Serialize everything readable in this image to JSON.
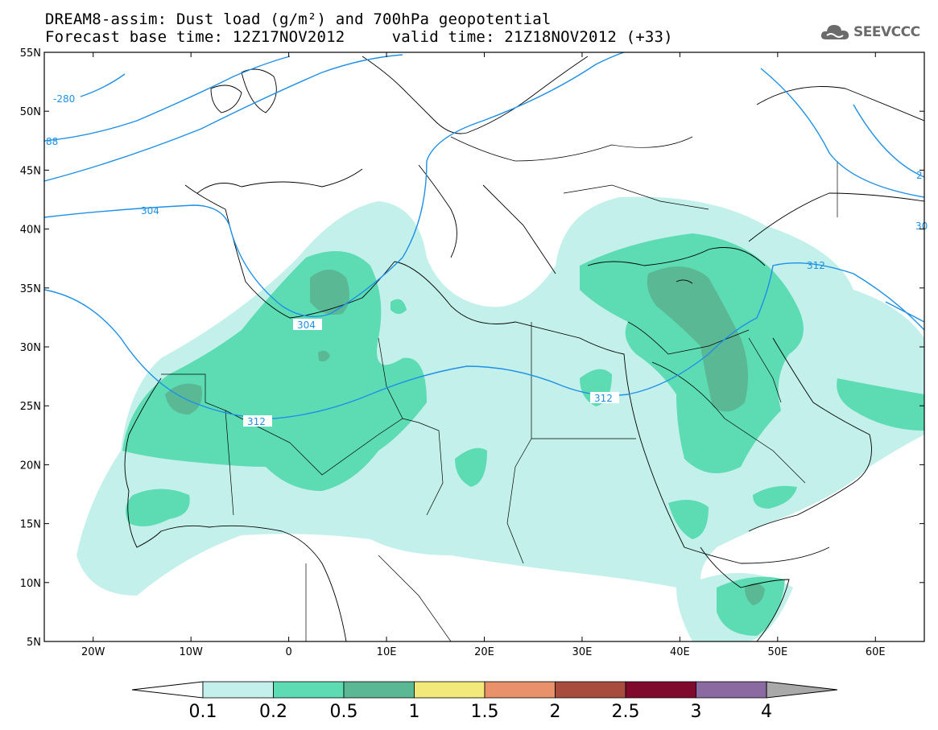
{
  "header": {
    "title_line1": "DREAM8-assim: Dust load (g/m²) and 700hPa geopotential",
    "title_line2": "Forecast base time: 12Z17NOV2012     valid time: 21Z18NOV2012 (+33)"
  },
  "logo": {
    "text": "SEEVCCC",
    "icon": "cloud-icon",
    "color": "#6b6b6b"
  },
  "map": {
    "lon_range": [
      -25,
      65
    ],
    "lat_range": [
      5,
      55
    ],
    "lat_labels": [
      "55N",
      "50N",
      "45N",
      "40N",
      "35N",
      "30N",
      "25N",
      "20N",
      "15N",
      "10N",
      "5N"
    ],
    "lon_labels": [
      "20W",
      "10W",
      "0",
      "10E",
      "20E",
      "30E",
      "40E",
      "50E",
      "60E"
    ],
    "contour_color": "#1e90e6",
    "contour_labels": [
      "-280",
      "88",
      "304",
      "304",
      "312",
      "312",
      "312",
      "30",
      "2"
    ]
  },
  "colorbar": {
    "labels": [
      "0.1",
      "0.2",
      "0.5",
      "1",
      "1.5",
      "2",
      "2.5",
      "3",
      "4"
    ],
    "colors": [
      "#c3f0ea",
      "#5ddcb4",
      "#5ab894",
      "#f3e87a",
      "#e8916a",
      "#a84c3e",
      "#800a2e",
      "#8a6aa0"
    ],
    "end_arrow_left": "#ffffff",
    "end_arrow_right": "#a9a9a9"
  }
}
